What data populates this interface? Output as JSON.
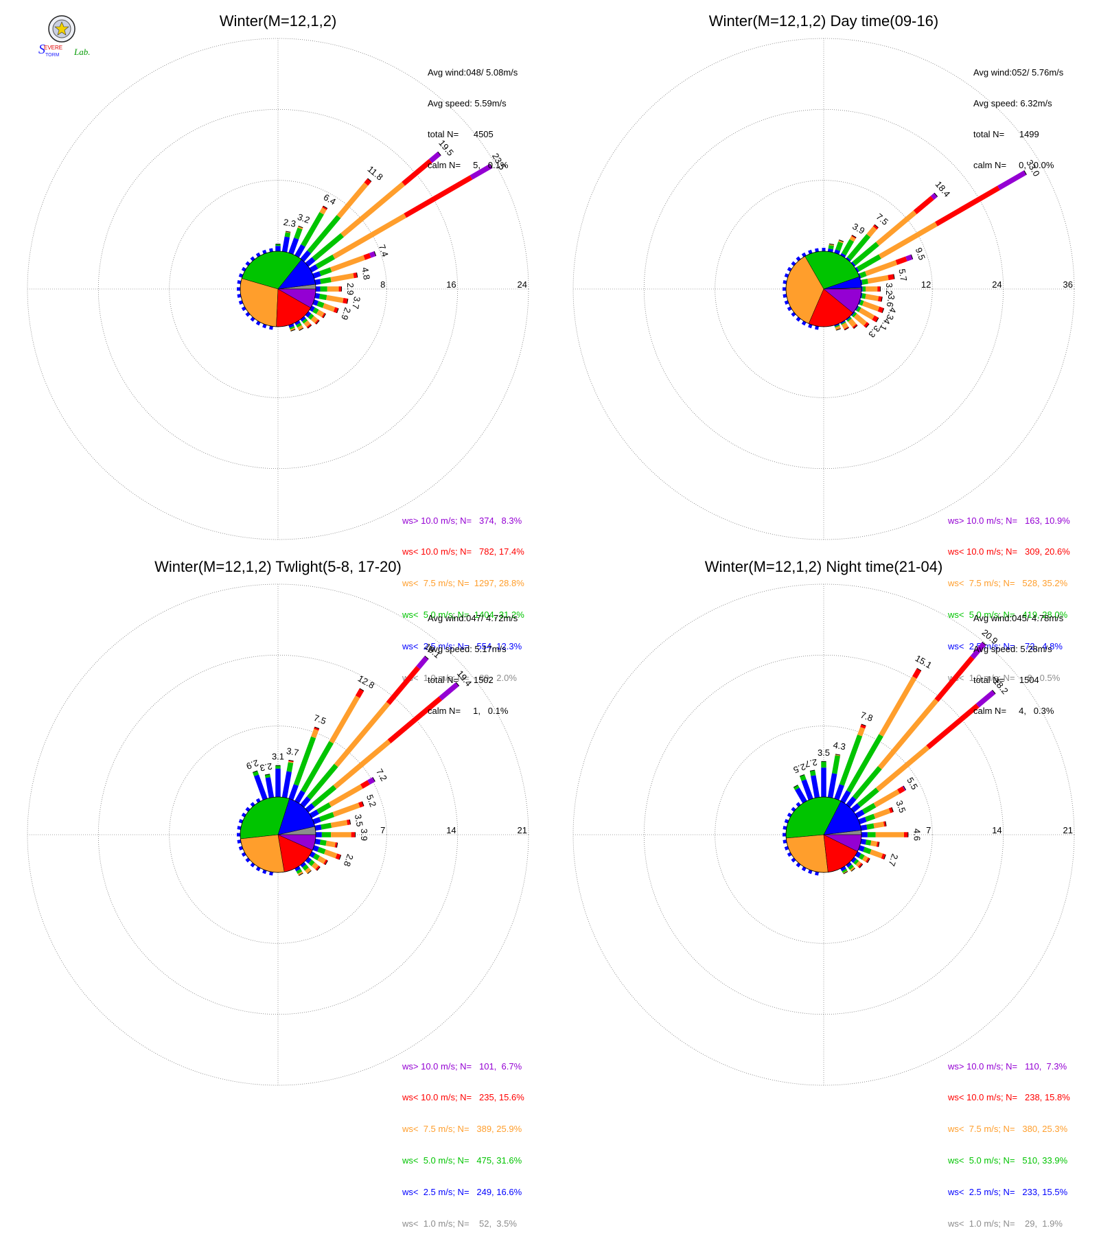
{
  "legend_bins": [
    {
      "key": "gt10",
      "color": "#9400d3"
    },
    {
      "key": "lt10",
      "color": "#ff0000"
    },
    {
      "key": "lt7_5",
      "color": "#ff9e2c"
    },
    {
      "key": "lt5",
      "color": "#00c400"
    },
    {
      "key": "lt2_5",
      "color": "#0000ff"
    },
    {
      "key": "lt1",
      "color": "#8c8c8c"
    }
  ],
  "chart_data": [
    {
      "type": "wind-rose",
      "title": "Winter(M=12,1,2)",
      "stats": {
        "avg_wind": "Avg wind:048/ 5.08m/s",
        "avg_speed": "Avg speed: 5.59m/s",
        "total": "total N=      4505",
        "calm": "calm N=     5,   0.1%"
      },
      "rings": [
        8,
        16,
        24
      ],
      "ring_labels": [
        "8",
        "16",
        "24"
      ],
      "legend": [
        "ws> 10.0 m/s; N=   374,  8.3%",
        "ws< 10.0 m/s; N=   782, 17.4%",
        "ws<  7.5 m/s; N=  1297, 28.8%",
        "ws<  5.0 m/s; N=  1404, 31.2%",
        "ws<  2.5 m/s; N=   554, 12.3%",
        "ws<  1.0 m/s; N=    89,  2.0%"
      ],
      "pie": [
        8.3,
        17.4,
        28.8,
        31.2,
        12.3,
        2.0
      ],
      "directions_deg": [
        0,
        10,
        20,
        30,
        40,
        50,
        60,
        70,
        80,
        90,
        100,
        110,
        120,
        130,
        140,
        150,
        160
      ],
      "petals": [
        {
          "total": 0.8,
          "parts": [
            0,
            0,
            0,
            0.2,
            0.6,
            0
          ]
        },
        {
          "total": 2.3,
          "parts": [
            0,
            0,
            0.1,
            0.5,
            1.7,
            0
          ],
          "label": "2.3"
        },
        {
          "total": 3.2,
          "parts": [
            0,
            0,
            0.2,
            1.2,
            1.8,
            0
          ],
          "label": "3.2"
        },
        {
          "total": 6.4,
          "parts": [
            0,
            0.2,
            0.6,
            4.2,
            1.4,
            0
          ],
          "label": "6.4"
        },
        {
          "total": 11.8,
          "parts": [
            0,
            0.6,
            4.8,
            5.2,
            1.2,
            0
          ],
          "label": "11.8"
        },
        {
          "total": 19.5,
          "parts": [
            1.3,
            4.0,
            9.0,
            4.2,
            1.0,
            0
          ],
          "label": "19.5"
        },
        {
          "total": 23.5,
          "parts": [
            2.6,
            8.6,
            9.3,
            2.2,
            0.8,
            0
          ],
          "label": "23.5"
        },
        {
          "total": 7.4,
          "parts": [
            0.6,
            0.7,
            4.0,
            1.3,
            0.8,
            0
          ],
          "label": "7.4"
        },
        {
          "total": 4.8,
          "parts": [
            0,
            0.4,
            2.6,
            1.2,
            0.6,
            0
          ],
          "label": "4.8"
        },
        {
          "total": 2.9,
          "parts": [
            0,
            0.3,
            1.3,
            0.8,
            0.5,
            0
          ],
          "label": "2.9"
        },
        {
          "total": 3.7,
          "parts": [
            0,
            0.5,
            1.9,
            0.8,
            0.5,
            0
          ],
          "label": "3.7"
        },
        {
          "total": 2.9,
          "parts": [
            0,
            0.4,
            1.3,
            0.7,
            0.5,
            0
          ],
          "label": "2.9"
        },
        {
          "total": 1.8,
          "parts": [
            0,
            0.2,
            0.7,
            0.5,
            0.4,
            0
          ]
        },
        {
          "total": 1.6,
          "parts": [
            0,
            0.2,
            0.6,
            0.4,
            0.4,
            0
          ]
        },
        {
          "total": 1.3,
          "parts": [
            0,
            0.2,
            0.5,
            0.3,
            0.3,
            0
          ]
        },
        {
          "total": 1.0,
          "parts": [
            0,
            0,
            0.4,
            0.3,
            0.3,
            0
          ]
        },
        {
          "total": 0.7,
          "parts": [
            0,
            0,
            0.2,
            0.2,
            0.3,
            0
          ]
        }
      ],
      "minor_dirs": [
        190,
        200,
        210,
        220,
        230,
        240,
        250,
        260,
        270,
        280,
        290,
        300,
        310,
        320,
        330,
        340,
        350
      ]
    },
    {
      "type": "wind-rose",
      "title": "Winter(M=12,1,2) Day time(09-16)",
      "stats": {
        "avg_wind": "Avg wind:052/ 5.76m/s",
        "avg_speed": "Avg speed: 6.32m/s",
        "total": "total N=      1499",
        "calm": "calm N=     0,   0.0%"
      },
      "rings": [
        12,
        24,
        36
      ],
      "ring_labels": [
        "12",
        "24",
        "36"
      ],
      "legend": [
        "ws> 10.0 m/s; N=   163, 10.9%",
        "ws< 10.0 m/s; N=   309, 20.6%",
        "ws<  7.5 m/s; N=   528, 35.2%",
        "ws<  5.0 m/s; N=   419, 28.0%",
        "ws<  2.5 m/s; N=    72,  4.8%",
        "ws<  1.0 m/s; N=     8,  0.5%"
      ],
      "pie": [
        10.9,
        20.6,
        35.2,
        28.0,
        4.8,
        0.5
      ],
      "directions_deg": [
        10,
        20,
        30,
        40,
        50,
        60,
        70,
        80,
        90,
        100,
        110,
        120,
        130,
        140,
        150,
        160
      ],
      "petals": [
        {
          "total": 1.3,
          "parts": [
            0,
            0,
            0.2,
            0.6,
            0.5,
            0
          ]
        },
        {
          "total": 2.3,
          "parts": [
            0,
            0,
            0.3,
            1.4,
            0.6,
            0
          ]
        },
        {
          "total": 3.9,
          "parts": [
            0,
            0.2,
            0.6,
            2.7,
            0.4,
            0
          ],
          "label": "3.9"
        },
        {
          "total": 7.5,
          "parts": [
            0,
            0.4,
            1.7,
            5.1,
            0.3,
            0
          ],
          "label": "7.5"
        },
        {
          "total": 18.4,
          "parts": [
            0.8,
            3.8,
            8.3,
            5.2,
            0.3,
            0
          ],
          "label": "18.4"
        },
        {
          "total": 33.0,
          "parts": [
            5.2,
            12.2,
            11.0,
            4.3,
            0.3,
            0
          ],
          "label": "33.0"
        },
        {
          "total": 9.5,
          "parts": [
            1.0,
            1.8,
            5.5,
            1.0,
            0.2,
            0
          ],
          "label": "9.5"
        },
        {
          "total": 5.7,
          "parts": [
            0,
            1.0,
            3.5,
            1.0,
            0.2,
            0
          ],
          "label": "5.7"
        },
        {
          "total": 3.2,
          "parts": [
            0,
            0.5,
            2.0,
            0.5,
            0.2,
            0
          ],
          "label": "3.2"
        },
        {
          "total": 3.6,
          "parts": [
            0,
            0.6,
            2.2,
            0.6,
            0.2,
            0
          ],
          "label": "3.6"
        },
        {
          "total": 4.3,
          "parts": [
            0,
            0.8,
            2.8,
            0.5,
            0.2,
            0
          ],
          "label": "4.3"
        },
        {
          "total": 4.1,
          "parts": [
            0,
            0.8,
            2.6,
            0.5,
            0.2,
            0
          ],
          "label": "4.1"
        },
        {
          "total": 3.3,
          "parts": [
            0,
            0.5,
            2.2,
            0.4,
            0.2,
            0
          ],
          "label": "3.3"
        },
        {
          "total": 2.0,
          "parts": [
            0,
            0.3,
            1.2,
            0.3,
            0.2,
            0
          ]
        },
        {
          "total": 1.4,
          "parts": [
            0,
            0.2,
            0.8,
            0.2,
            0.2,
            0
          ]
        },
        {
          "total": 0.9,
          "parts": [
            0,
            0,
            0.5,
            0.2,
            0.2,
            0
          ]
        }
      ],
      "minor_dirs": [
        190,
        200,
        210,
        220,
        230,
        240,
        250,
        260,
        270,
        280,
        290,
        300,
        310,
        320,
        330,
        340,
        350,
        0
      ]
    },
    {
      "type": "wind-rose",
      "title": "Winter(M=12,1,2) Twlight(5-8, 17-20)",
      "stats": {
        "avg_wind": "Avg wind:047/ 4.72m/s",
        "avg_speed": "Avg speed: 5.17m/s",
        "total": "total N=      1502",
        "calm": "calm N=     1,   0.1%"
      },
      "rings": [
        7,
        14,
        21
      ],
      "ring_labels": [
        "7",
        "14",
        "21"
      ],
      "legend": [
        "ws> 10.0 m/s; N=   101,  6.7%",
        "ws< 10.0 m/s; N=   235, 15.6%",
        "ws<  7.5 m/s; N=   389, 25.9%",
        "ws<  5.0 m/s; N=   475, 31.6%",
        "ws<  2.5 m/s; N=   249, 16.6%",
        "ws<  1.0 m/s; N=    52,  3.5%"
      ],
      "pie": [
        6.7,
        15.6,
        25.9,
        31.6,
        16.6,
        3.5
      ],
      "directions_deg": [
        340,
        350,
        0,
        10,
        20,
        30,
        40,
        50,
        60,
        70,
        80,
        90,
        100,
        110,
        120,
        130,
        140,
        150
      ],
      "petals": [
        {
          "total": 2.9,
          "parts": [
            0,
            0,
            0,
            0.4,
            2.5,
            0
          ],
          "label": "2.9"
        },
        {
          "total": 2.3,
          "parts": [
            0,
            0,
            0,
            0.3,
            2.0,
            0
          ],
          "label": "2.3"
        },
        {
          "total": 3.1,
          "parts": [
            0,
            0,
            0,
            0.3,
            2.8,
            0
          ],
          "label": "3.1"
        },
        {
          "total": 3.7,
          "parts": [
            0,
            0.1,
            0.1,
            0.9,
            2.6,
            0
          ],
          "label": "3.7"
        },
        {
          "total": 7.5,
          "parts": [
            0,
            0.2,
            0.8,
            5.0,
            1.5,
            0
          ],
          "label": "7.5"
        },
        {
          "total": 12.8,
          "parts": [
            0,
            0.8,
            5.2,
            5.6,
            1.2,
            0
          ],
          "label": "12.8"
        },
        {
          "total": 19.1,
          "parts": [
            1.3,
            4.6,
            8.0,
            4.2,
            1.0,
            0
          ],
          "label": "19.1"
        },
        {
          "total": 19.4,
          "parts": [
            2.2,
            6.6,
            7.0,
            2.8,
            0.8,
            0
          ],
          "label": "19.4"
        },
        {
          "total": 7.2,
          "parts": [
            0.6,
            0.8,
            3.6,
            1.4,
            0.8,
            0
          ],
          "label": "7.2"
        },
        {
          "total": 5.2,
          "parts": [
            0,
            0.4,
            2.7,
            1.4,
            0.7,
            0
          ],
          "label": "5.2"
        },
        {
          "total": 3.5,
          "parts": [
            0,
            0.3,
            1.6,
            1.0,
            0.6,
            0
          ],
          "label": "3.5"
        },
        {
          "total": 3.9,
          "parts": [
            0,
            0.4,
            2.0,
            0.9,
            0.6,
            0
          ],
          "label": "3.9"
        },
        {
          "total": 2.2,
          "parts": [
            0,
            0.2,
            0.9,
            0.6,
            0.5,
            0
          ]
        },
        {
          "total": 2.8,
          "parts": [
            0,
            0.4,
            1.2,
            0.7,
            0.5,
            0
          ],
          "label": "2.8"
        },
        {
          "total": 1.8,
          "parts": [
            0,
            0.2,
            0.7,
            0.5,
            0.4,
            0
          ]
        },
        {
          "total": 1.5,
          "parts": [
            0,
            0.2,
            0.5,
            0.4,
            0.4,
            0
          ]
        },
        {
          "total": 1.1,
          "parts": [
            0,
            0,
            0.4,
            0.4,
            0.3,
            0
          ]
        },
        {
          "total": 0.8,
          "parts": [
            0,
            0,
            0.2,
            0.3,
            0.3,
            0
          ]
        }
      ],
      "minor_dirs": [
        190,
        200,
        210,
        220,
        230,
        240,
        250,
        260,
        270,
        280,
        290,
        300,
        310,
        320,
        330
      ]
    },
    {
      "type": "wind-rose",
      "title": "Winter(M=12,1,2) Night time(21-04)",
      "stats": {
        "avg_wind": "Avg wind:045/ 4.78m/s",
        "avg_speed": "Avg speed: 5.28m/s",
        "total": "total N=      1504",
        "calm": "calm N=     4,   0.3%"
      },
      "rings": [
        7,
        14,
        21
      ],
      "ring_labels": [
        "7",
        "14",
        "21"
      ],
      "legend": [
        "ws> 10.0 m/s; N=   110,  7.3%",
        "ws< 10.0 m/s; N=   238, 15.8%",
        "ws<  7.5 m/s; N=   380, 25.3%",
        "ws<  5.0 m/s; N=   510, 33.9%",
        "ws<  2.5 m/s; N=   233, 15.5%",
        "ws<  1.0 m/s; N=    29,  1.9%"
      ],
      "pie": [
        7.3,
        15.8,
        25.3,
        33.9,
        15.5,
        1.9
      ],
      "directions_deg": [
        330,
        340,
        350,
        0,
        10,
        20,
        30,
        40,
        50,
        60,
        70,
        80,
        90,
        100,
        110,
        120,
        130,
        140,
        150
      ],
      "petals": [
        {
          "total": 1.8,
          "parts": [
            0,
            0,
            0,
            0.3,
            1.5,
            0
          ]
        },
        {
          "total": 2.5,
          "parts": [
            0,
            0,
            0,
            0.5,
            2.0,
            0
          ],
          "label": "2.5"
        },
        {
          "total": 2.7,
          "parts": [
            0,
            0,
            0,
            0.5,
            2.2,
            0
          ],
          "label": "2.7"
        },
        {
          "total": 3.5,
          "parts": [
            0,
            0,
            0,
            0.6,
            2.9,
            0
          ],
          "label": "3.5"
        },
        {
          "total": 4.3,
          "parts": [
            0,
            0,
            0.1,
            1.8,
            2.4,
            0
          ],
          "label": "4.3"
        },
        {
          "total": 7.8,
          "parts": [
            0,
            0.3,
            0.8,
            5.2,
            1.5,
            0
          ],
          "label": "7.8"
        },
        {
          "total": 15.1,
          "parts": [
            0,
            0.9,
            6.6,
            6.4,
            1.2,
            0
          ],
          "label": "15.1"
        },
        {
          "total": 20.9,
          "parts": [
            1.8,
            5.5,
            8.7,
            3.9,
            1.0,
            0
          ],
          "label": "20.9"
        },
        {
          "total": 18.2,
          "parts": [
            2.1,
            6.4,
            6.5,
            2.4,
            0.8,
            0
          ],
          "label": "18.2"
        },
        {
          "total": 5.5,
          "parts": [
            0.1,
            0.6,
            2.7,
            1.3,
            0.8,
            0
          ],
          "label": "5.5"
        },
        {
          "total": 3.5,
          "parts": [
            0,
            0.3,
            1.6,
            0.9,
            0.7,
            0
          ],
          "label": "3.5"
        },
        {
          "total": 2.5,
          "parts": [
            0,
            0.2,
            1.0,
            0.7,
            0.6,
            0
          ]
        },
        {
          "total": 4.6,
          "parts": [
            0,
            0.4,
            2.8,
            0.8,
            0.6,
            0
          ],
          "label": "4.6"
        },
        {
          "total": 1.8,
          "parts": [
            0,
            0.2,
            0.6,
            0.5,
            0.5,
            0
          ]
        },
        {
          "total": 2.7,
          "parts": [
            0,
            0.3,
            1.2,
            0.7,
            0.5,
            0
          ],
          "label": "2.7"
        },
        {
          "total": 1.4,
          "parts": [
            0,
            0.2,
            0.4,
            0.4,
            0.4,
            0
          ]
        },
        {
          "total": 1.1,
          "parts": [
            0,
            0.2,
            0.3,
            0.3,
            0.3,
            0
          ]
        },
        {
          "total": 0.8,
          "parts": [
            0,
            0,
            0.2,
            0.3,
            0.3,
            0
          ]
        },
        {
          "total": 0.6,
          "parts": [
            0,
            0,
            0.1,
            0.2,
            0.3,
            0
          ]
        }
      ],
      "minor_dirs": [
        190,
        200,
        210,
        220,
        230,
        240,
        250,
        260,
        270,
        280,
        290,
        300,
        310,
        320
      ]
    }
  ]
}
